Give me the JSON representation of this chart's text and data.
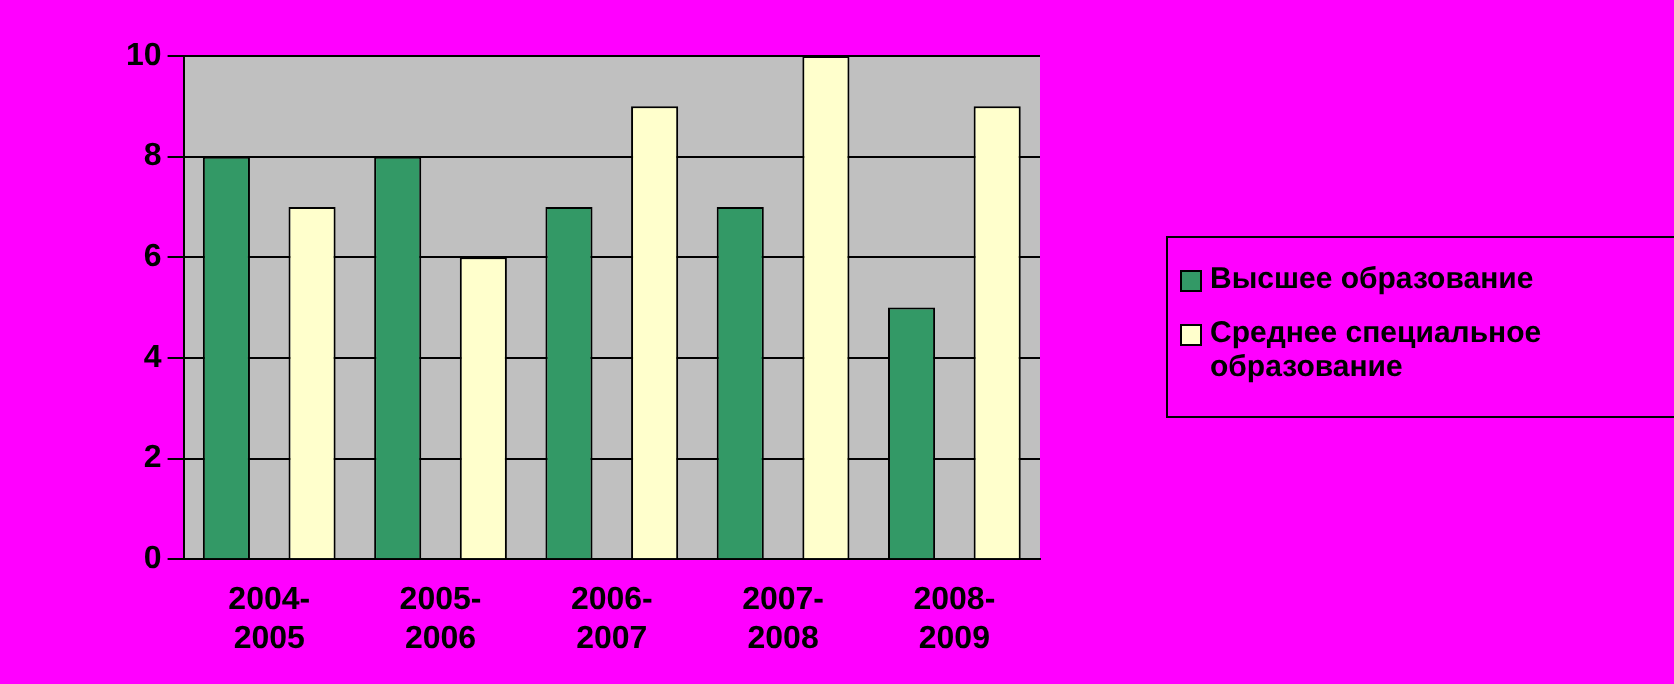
{
  "chart_data": {
    "type": "bar",
    "categories": [
      "2004-2005",
      "2005-2006",
      "2006-2007",
      "2007-2008",
      "2008-2009"
    ],
    "series": [
      {
        "name": "Высшее образование",
        "color": "#339966",
        "values": [
          8,
          8,
          7,
          7,
          5
        ]
      },
      {
        "name": "Среднее специальное образование",
        "color": "#ffffcc",
        "values": [
          7,
          6,
          9,
          10,
          9
        ]
      }
    ],
    "ylim": [
      0,
      10
    ],
    "yticks": [
      0,
      2,
      4,
      6,
      8,
      10
    ],
    "grid": "y",
    "legend": "right"
  }
}
